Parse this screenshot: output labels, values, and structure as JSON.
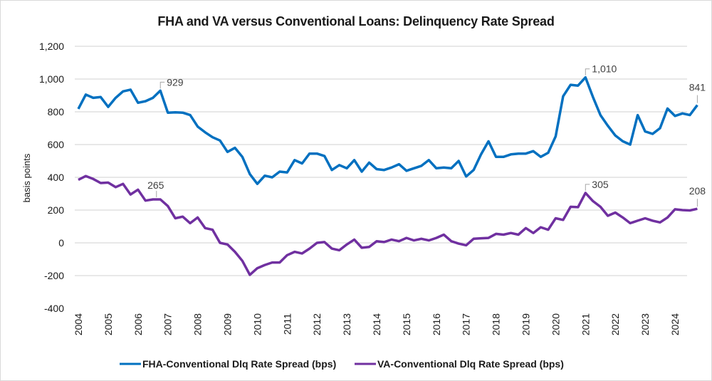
{
  "chart_data": {
    "type": "line",
    "title": "FHA and VA versus Conventional Loans: Delinquency Rate Spread",
    "xlabel": "",
    "ylabel": "basis points",
    "ylim": [
      -400,
      1200
    ],
    "yticks": [
      -400,
      -200,
      0,
      200,
      400,
      600,
      800,
      1000,
      1200
    ],
    "ytick_labels": [
      "-400",
      "-200",
      "0",
      "200",
      "400",
      "600",
      "800",
      "1,000",
      "1,200"
    ],
    "xtick_labels": [
      "2004",
      "2005",
      "2006",
      "2007",
      "2008",
      "2009",
      "2010",
      "2011",
      "2012",
      "2013",
      "2014",
      "2015",
      "2016",
      "2017",
      "2018",
      "2019",
      "2020",
      "2021",
      "2022",
      "2023",
      "2024"
    ],
    "x_start": 2004,
    "x_step": 0.25,
    "grid": true,
    "legend": "bottom",
    "series": [
      {
        "name": "FHA-Conventional Dlq Rate Spread (bps)",
        "color": "#0070C0",
        "values": [
          818,
          905,
          885,
          890,
          830,
          885,
          925,
          935,
          855,
          865,
          885,
          929,
          795,
          797,
          795,
          780,
          710,
          675,
          645,
          625,
          555,
          580,
          525,
          420,
          360,
          410,
          400,
          435,
          430,
          505,
          485,
          545,
          545,
          530,
          445,
          475,
          455,
          505,
          435,
          490,
          450,
          445,
          460,
          480,
          440,
          455,
          470,
          505,
          455,
          460,
          455,
          500,
          405,
          445,
          540,
          620,
          525,
          525,
          540,
          545,
          545,
          560,
          525,
          550,
          650,
          895,
          965,
          960,
          1010,
          890,
          780,
          715,
          655,
          620,
          600,
          780,
          680,
          665,
          700,
          820,
          775,
          790,
          780,
          841
        ],
        "annotations": [
          {
            "index": 11,
            "label": "929"
          },
          {
            "index": 68,
            "label": "1,010"
          },
          {
            "index": 83,
            "label": "841"
          }
        ]
      },
      {
        "name": "VA-Conventional Dlq Rate Spread (bps)",
        "color": "#7030A0",
        "values": [
          385,
          408,
          390,
          365,
          368,
          340,
          360,
          295,
          325,
          258,
          265,
          265,
          225,
          150,
          160,
          120,
          155,
          90,
          80,
          0,
          -10,
          -55,
          -110,
          -195,
          -155,
          -135,
          -120,
          -120,
          -75,
          -55,
          -65,
          -35,
          0,
          5,
          -35,
          -45,
          -10,
          20,
          -30,
          -25,
          10,
          5,
          20,
          10,
          30,
          15,
          25,
          15,
          30,
          50,
          10,
          -5,
          -15,
          25,
          28,
          30,
          55,
          50,
          60,
          50,
          90,
          60,
          95,
          80,
          150,
          140,
          220,
          218,
          305,
          255,
          220,
          165,
          185,
          155,
          120,
          135,
          150,
          135,
          125,
          155,
          205,
          200,
          198,
          208
        ],
        "annotations": [
          {
            "index": 10,
            "label": "265"
          },
          {
            "index": 68,
            "label": "305"
          },
          {
            "index": 83,
            "label": "208"
          }
        ]
      }
    ]
  }
}
